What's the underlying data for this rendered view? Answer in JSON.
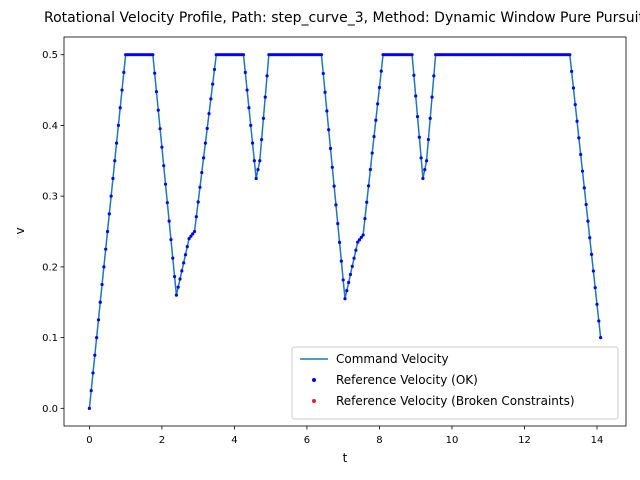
{
  "chart_data": {
    "type": "line",
    "title": "Rotational Velocity Profile, Path: step_curve_3, Method: Dynamic Window Pure Pursuit",
    "xlabel": "t",
    "ylabel": "v",
    "xlim": [
      -0.7,
      14.8
    ],
    "ylim": [
      -0.025,
      0.525
    ],
    "xticks": [
      0,
      2,
      4,
      6,
      8,
      10,
      12,
      14
    ],
    "yticks": [
      0.0,
      0.1,
      0.2,
      0.3,
      0.4,
      0.5
    ],
    "xtick_labels": [
      "0",
      "2",
      "4",
      "6",
      "8",
      "10",
      "12",
      "14"
    ],
    "ytick_labels": [
      "0.0",
      "0.1",
      "0.2",
      "0.3",
      "0.4",
      "0.5"
    ],
    "grid": false,
    "legend_position": "lower-right",
    "series": [
      {
        "name": "Command Velocity",
        "style": "line",
        "color": "#1f77b4",
        "x": [
          0,
          1.0,
          1.75,
          2.4,
          2.75,
          2.9,
          3.5,
          4.25,
          4.6,
          4.7,
          4.95,
          6.4,
          7.05,
          7.4,
          7.55,
          8.1,
          8.9,
          9.2,
          9.3,
          9.55,
          13.25,
          14.1
        ],
        "y": [
          0,
          0.5,
          0.5,
          0.16,
          0.24,
          0.25,
          0.5,
          0.5,
          0.325,
          0.35,
          0.5,
          0.5,
          0.155,
          0.235,
          0.245,
          0.5,
          0.5,
          0.325,
          0.35,
          0.5,
          0.5,
          0.1
        ]
      },
      {
        "name": "Reference Velocity (OK)",
        "style": "scatter",
        "color": "#0000ff",
        "x": [
          0,
          1.0,
          1.75,
          2.4,
          2.75,
          2.9,
          3.5,
          4.25,
          4.6,
          4.7,
          4.95,
          6.4,
          7.05,
          7.4,
          7.55,
          8.1,
          8.9,
          9.2,
          9.3,
          9.55,
          13.25,
          14.1
        ],
        "y": [
          0,
          0.5,
          0.5,
          0.16,
          0.24,
          0.25,
          0.5,
          0.5,
          0.325,
          0.35,
          0.5,
          0.5,
          0.155,
          0.235,
          0.245,
          0.5,
          0.5,
          0.325,
          0.35,
          0.5,
          0.5,
          0.1
        ]
      },
      {
        "name": "Reference Velocity (Broken Constraints)",
        "style": "scatter",
        "color": "#d62728",
        "x": [],
        "y": []
      }
    ]
  }
}
